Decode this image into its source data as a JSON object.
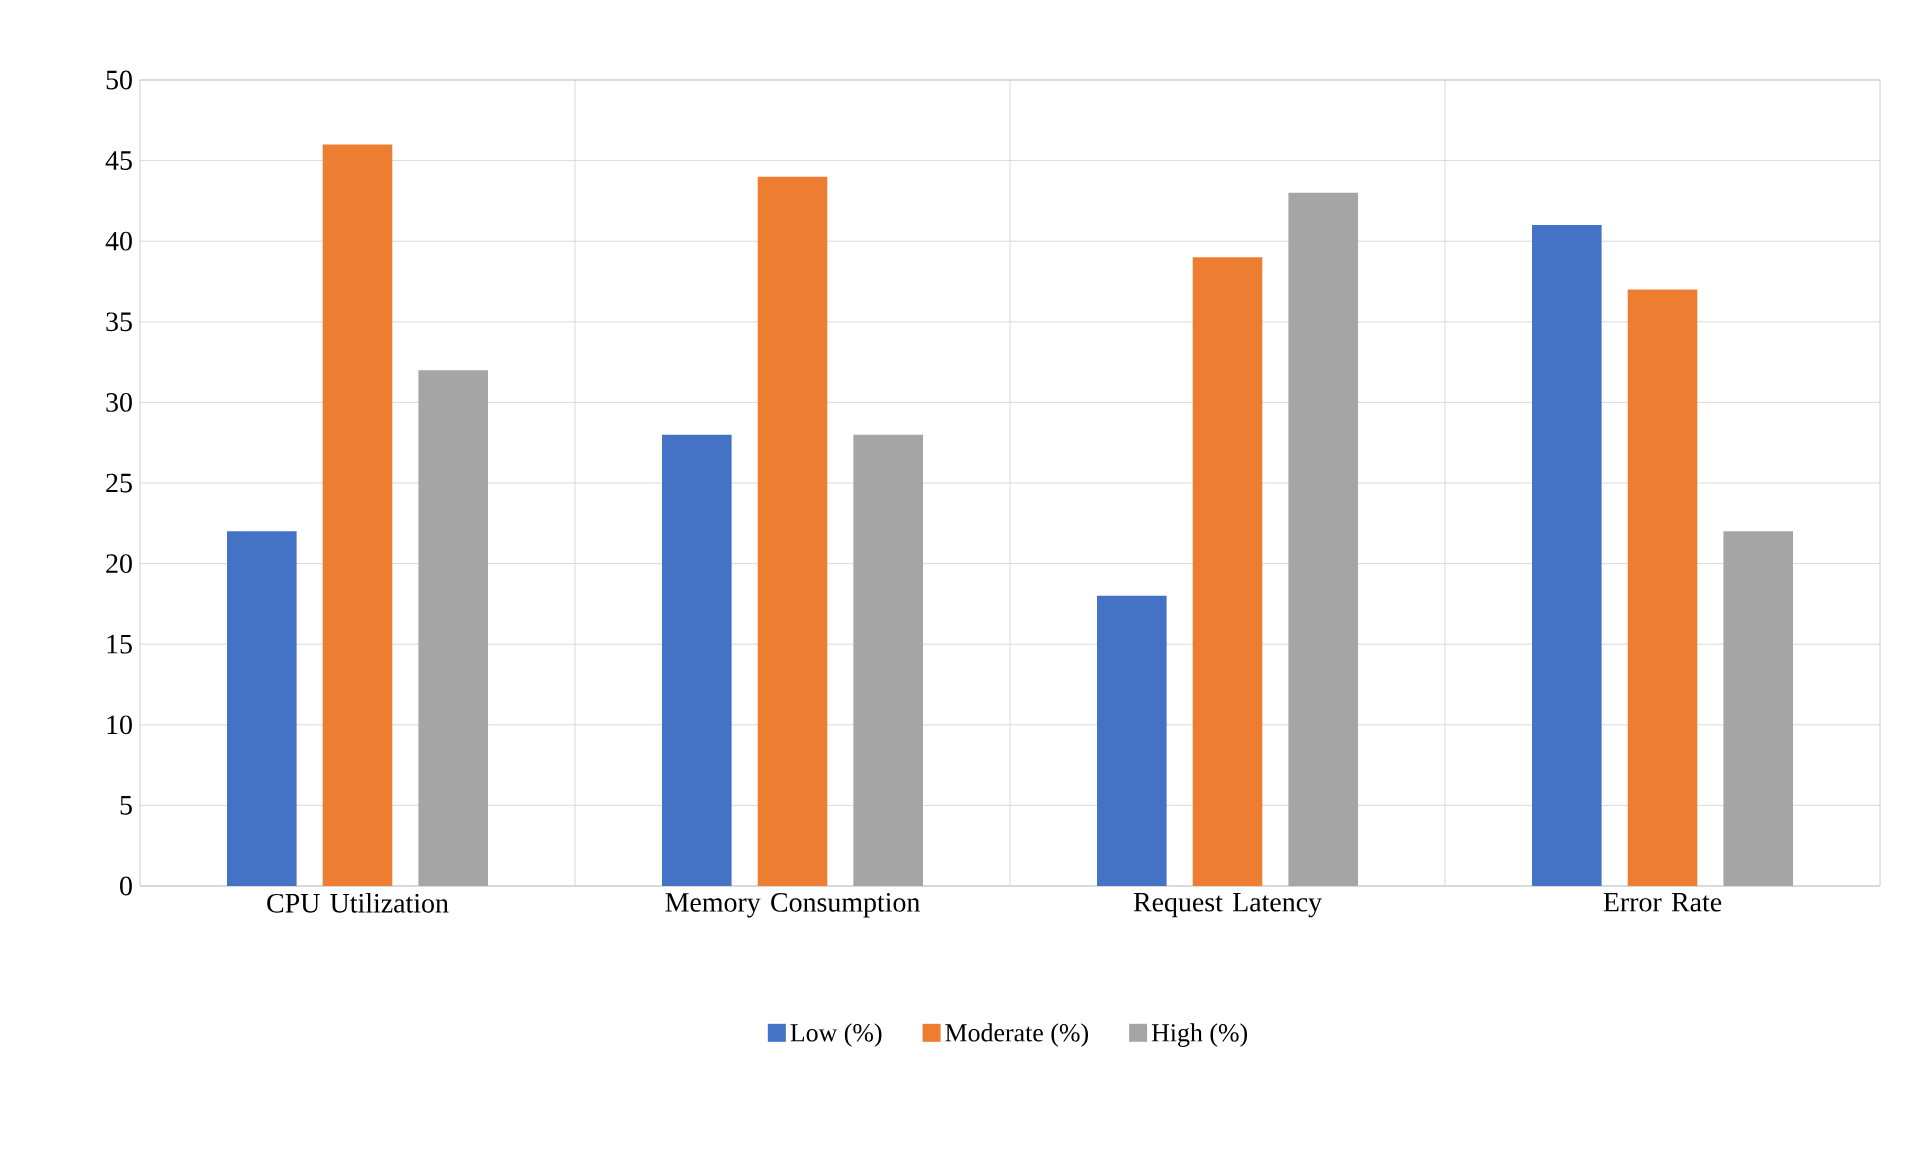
{
  "chart_data": {
    "type": "bar",
    "categories": [
      "CPU Utilization",
      "Memory Consumption",
      "Request Latency",
      "Error Rate"
    ],
    "series": [
      {
        "name": "Low (%)",
        "color": "#4472c4",
        "values": [
          22,
          28,
          18,
          41
        ]
      },
      {
        "name": "Moderate (%)",
        "color": "#ed7d31",
        "values": [
          46,
          44,
          39,
          37
        ]
      },
      {
        "name": "High (%)",
        "color": "#a5a5a5",
        "values": [
          32,
          28,
          43,
          22
        ]
      }
    ],
    "ylim": [
      0,
      50
    ],
    "yticks": [
      0,
      5,
      10,
      15,
      20,
      25,
      30,
      35,
      40,
      45,
      50
    ],
    "grid": true,
    "legend": "bottom"
  }
}
